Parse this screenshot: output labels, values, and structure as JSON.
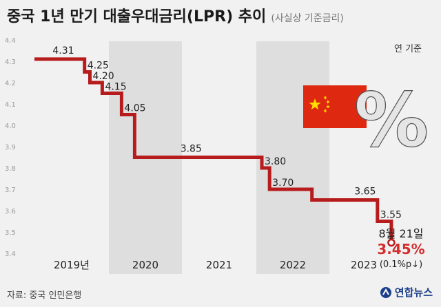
{
  "header": {
    "title": "중국 1년 만기 대출우대금리(LPR) 추이",
    "subtitle": "(사실상 기준금리)"
  },
  "unit_label": "연 기준",
  "source": "자료: 중국 인민은행",
  "logo": {
    "name": "연합뉴스"
  },
  "annotation": {
    "date": "8월 21일",
    "value": "3.45%",
    "change": "(0.1%p↓)"
  },
  "colors": {
    "line": "#b71c1c",
    "highlight": "#d32f2f",
    "band": "#dedede",
    "background": "#f1f1f1",
    "flag_red": "#de2910",
    "flag_yellow": "#ffde00"
  },
  "decor": {
    "flag": "china-flag",
    "symbol": "%"
  },
  "chart_data": {
    "type": "line",
    "step": true,
    "ylim": [
      3.4,
      4.4
    ],
    "y_ticks": [
      "3.4",
      "3.5",
      "3.6",
      "3.7",
      "3.8",
      "3.9",
      "4.0",
      "4.1",
      "4.2",
      "4.3",
      "4.4"
    ],
    "x_labels": [
      "2019년",
      "2020",
      "2021",
      "2022",
      "2023"
    ],
    "x_range": [
      2019.0,
      2023.72
    ],
    "grid": false,
    "series": [
      {
        "values": [
          {
            "x": 2019.0,
            "y": 4.31,
            "label": "4.31"
          },
          {
            "x": 2019.65,
            "y": 4.25,
            "label": "4.25"
          },
          {
            "x": 2019.72,
            "y": 4.2,
            "label": "4.20"
          },
          {
            "x": 2019.88,
            "y": 4.15,
            "label": "4.15"
          },
          {
            "x": 2020.13,
            "y": 4.05,
            "label": "4.05"
          },
          {
            "x": 2020.3,
            "y": 3.85,
            "label": "3.85"
          },
          {
            "x": 2021.95,
            "y": 3.8,
            "label": "3.80"
          },
          {
            "x": 2022.05,
            "y": 3.7,
            "label": "3.70"
          },
          {
            "x": 2022.6,
            "y": 3.65,
            "label": "3.65"
          },
          {
            "x": 2023.45,
            "y": 3.55,
            "label": "3.55"
          },
          {
            "x": 2023.63,
            "y": 3.45,
            "label": "3.45%"
          }
        ]
      }
    ]
  }
}
